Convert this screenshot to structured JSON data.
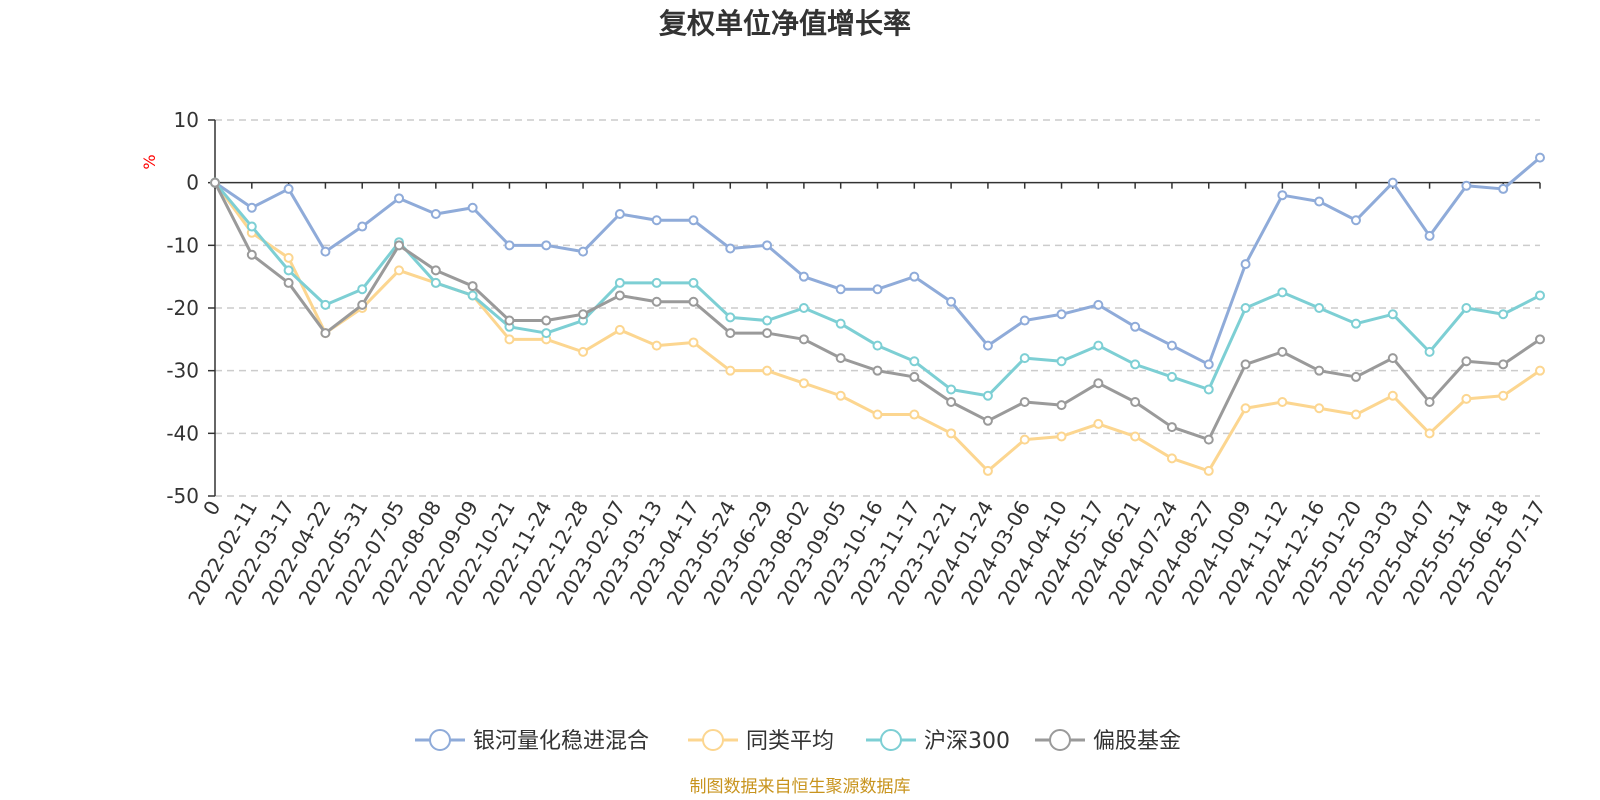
{
  "chart_data": {
    "type": "line",
    "title": "复权单位净值增长率",
    "ylabel": "%",
    "ylim": [
      -50,
      10
    ],
    "yticks": [
      10,
      0,
      -10,
      -20,
      -30,
      -40,
      -50
    ],
    "grid": true,
    "legend_position": "bottom",
    "categories": [
      "0",
      "2022-02-11",
      "2022-03-17",
      "2022-04-22",
      "2022-05-31",
      "2022-07-05",
      "2022-08-08",
      "2022-09-09",
      "2022-10-21",
      "2022-11-24",
      "2022-12-28",
      "2023-02-07",
      "2023-03-13",
      "2023-04-17",
      "2023-05-24",
      "2023-06-29",
      "2023-08-02",
      "2023-09-05",
      "2023-10-16",
      "2023-11-17",
      "2023-12-21",
      "2024-01-24",
      "2024-03-06",
      "2024-04-10",
      "2024-05-17",
      "2024-06-21",
      "2024-07-24",
      "2024-08-27",
      "2024-10-09",
      "2024-11-12",
      "2024-12-16",
      "2025-01-20",
      "2025-03-03",
      "2025-04-07",
      "2025-05-14",
      "2025-06-18",
      "2025-07-17"
    ],
    "series": [
      {
        "name": "银河量化稳进混合",
        "color": "#8fabd9",
        "values": [
          0,
          -4,
          -1,
          -11,
          -7,
          -2.5,
          -5,
          -4,
          -10,
          -10,
          -11,
          -5,
          -6,
          -6,
          -10.5,
          -10,
          -15,
          -17,
          -17,
          -15,
          -19,
          -26,
          -22,
          -21,
          -19.5,
          -23,
          -26,
          -29,
          -13,
          -2,
          -3,
          -6,
          0,
          -8.5,
          -0.5,
          -1,
          4
        ]
      },
      {
        "name": "同类平均",
        "color": "#fcd690",
        "values": [
          0,
          -8,
          -12,
          -24,
          -20,
          -14,
          -16,
          -18,
          -25,
          -25,
          -27,
          -23.5,
          -26,
          -25.5,
          -30,
          -30,
          -32,
          -34,
          -37,
          -37,
          -40,
          -46,
          -41,
          -40.5,
          -38.5,
          -40.5,
          -44,
          -46,
          -36,
          -35,
          -36,
          -37,
          -34,
          -40,
          -34.5,
          -34,
          -30
        ]
      },
      {
        "name": "沪深300",
        "color": "#7dcfd4",
        "values": [
          0,
          -7,
          -14,
          -19.5,
          -17,
          -9.5,
          -16,
          -18,
          -23,
          -24,
          -22,
          -16,
          -16,
          -16,
          -21.5,
          -22,
          -20,
          -22.5,
          -26,
          -28.5,
          -33,
          -34,
          -28,
          -28.5,
          -26,
          -29,
          -31,
          -33,
          -20,
          -17.5,
          -20,
          -22.5,
          -21,
          -27,
          -20,
          -21,
          -18
        ]
      },
      {
        "name": "偏股基金",
        "color": "#9a9a9a",
        "values": [
          0,
          -11.5,
          -16,
          -24,
          -19.5,
          -10,
          -14,
          -16.5,
          -22,
          -22,
          -21,
          -18,
          -19,
          -19,
          -24,
          -24,
          -25,
          -28,
          -30,
          -31,
          -35,
          -38,
          -35,
          -35.5,
          -32,
          -35,
          -39,
          -41,
          -29,
          -27,
          -30,
          -31,
          -28,
          -35,
          -28.5,
          -29,
          -25
        ]
      }
    ],
    "source": "制图数据来自恒生聚源数据库"
  }
}
